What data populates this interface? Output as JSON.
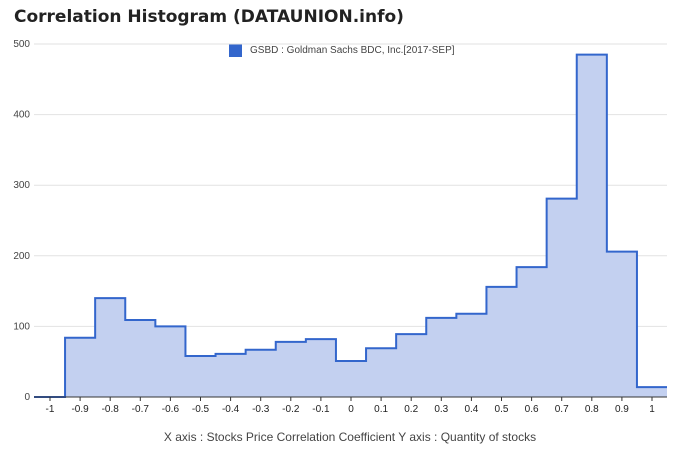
{
  "title": "Correlation Histogram (DATAUNION.info)",
  "legend": {
    "label": "GSBD : Goldman Sachs BDC, Inc.[2017-SEP]"
  },
  "x_caption": "X axis : Stocks Price Correlation Coefficient   Y axis : Quantity of stocks",
  "colors": {
    "line": "#3366cc",
    "fill": "#c3d0f0",
    "grid": "#e2e2e2",
    "axis": "#333333",
    "tick_text": "#444444"
  },
  "chart_data": {
    "type": "area",
    "series": [
      {
        "name": "GSBD : Goldman Sachs BDC, Inc.[2017-SEP]",
        "x": [
          -1,
          -0.9,
          -0.8,
          -0.7,
          -0.6,
          -0.5,
          -0.4,
          -0.3,
          -0.2,
          -0.1,
          0,
          0.1,
          0.2,
          0.3,
          0.4,
          0.5,
          0.6,
          0.7,
          0.8,
          0.9,
          1
        ],
        "values": [
          0,
          84,
          140,
          109,
          100,
          58,
          61,
          67,
          78,
          82,
          51,
          69,
          89,
          112,
          118,
          156,
          184,
          281,
          485,
          206,
          14
        ]
      }
    ],
    "xlim": [
      -1,
      1
    ],
    "ylim": [
      0,
      500
    ],
    "x_ticks": [
      "-1",
      "-0.9",
      "-0.8",
      "-0.7",
      "-0.6",
      "-0.5",
      "-0.4",
      "-0.3",
      "-0.2",
      "-0.1",
      "0",
      "0.1",
      "0.2",
      "0.3",
      "0.4",
      "0.5",
      "0.6",
      "0.7",
      "0.8",
      "0.9",
      "1"
    ],
    "y_ticks": [
      0,
      100,
      200,
      300,
      400,
      500
    ],
    "grid": true,
    "legend_position": "top"
  }
}
